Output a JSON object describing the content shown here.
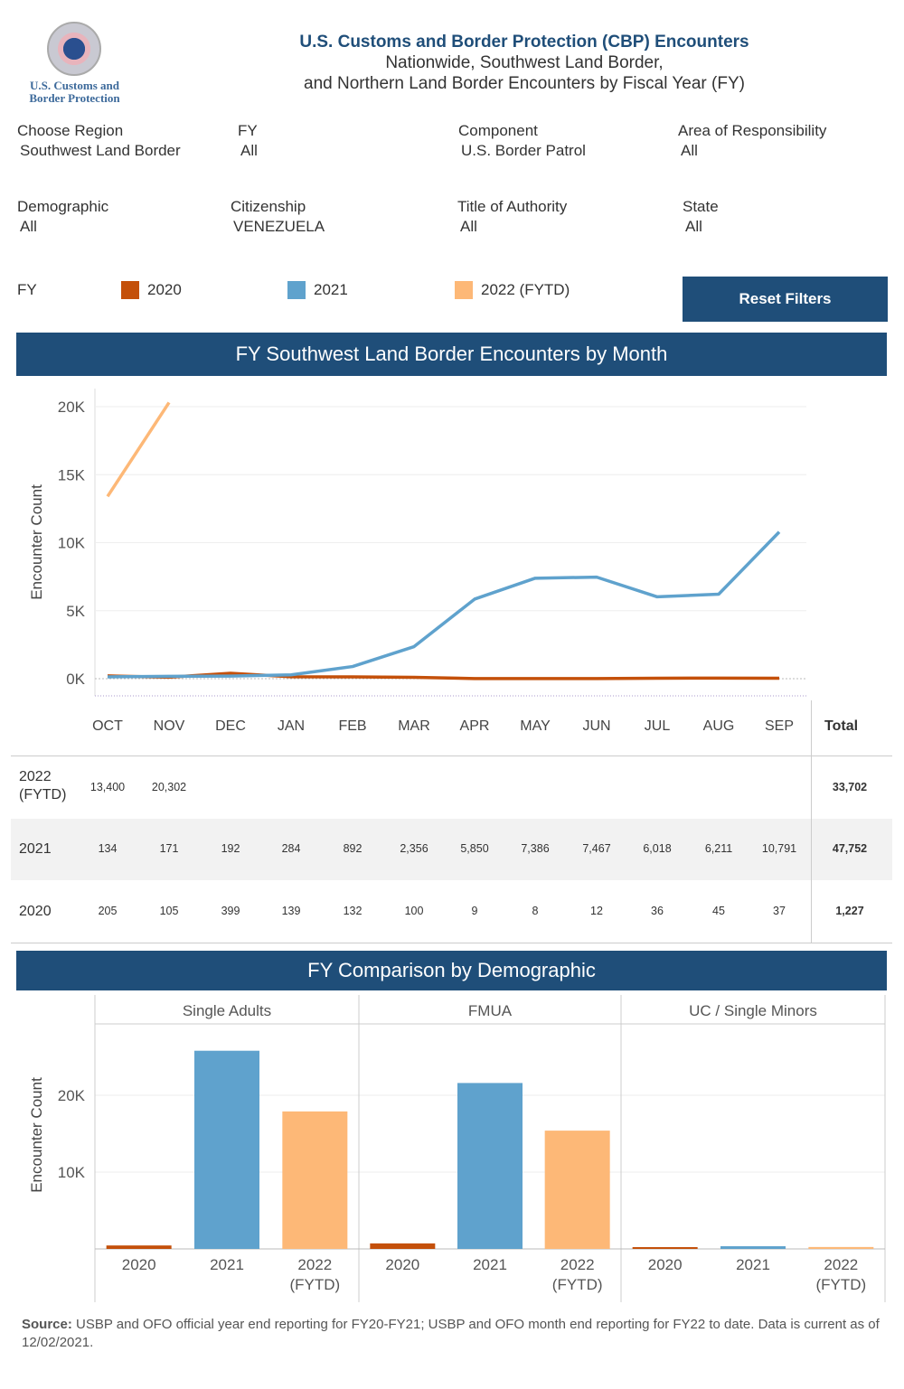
{
  "header": {
    "logo_text": "U.S. Customs and Border Protection",
    "title": "U.S. Customs and Border Protection (CBP) Encounters",
    "subtitle1": "Nationwide, Southwest Land Border,",
    "subtitle2": "and Northern Land Border Encounters by Fiscal Year (FY)"
  },
  "filters": [
    {
      "label": "Choose Region",
      "value": "Southwest Land Border"
    },
    {
      "label": "FY",
      "value": "All"
    },
    {
      "label": "Component",
      "value": "U.S. Border Patrol"
    },
    {
      "label": "Area of Responsibility",
      "value": "All"
    },
    {
      "label": "Demographic",
      "value": "All"
    },
    {
      "label": "Citizenship",
      "value": "VENEZUELA"
    },
    {
      "label": "Title of Authority",
      "value": "All"
    },
    {
      "label": "State",
      "value": "All"
    }
  ],
  "legend": {
    "label": "FY",
    "items": [
      {
        "label": "2020",
        "color": "#c4500a"
      },
      {
        "label": "2021",
        "color": "#5fa2cd"
      },
      {
        "label": "2022 (FYTD)",
        "color": "#fdb877"
      }
    ]
  },
  "reset_label": "Reset Filters",
  "monthly": {
    "banner": "FY Southwest Land Border Encounters by Month",
    "ylabel": "Encounter Count",
    "total_label": "Total"
  },
  "demo": {
    "banner": "FY Comparison by Demographic",
    "ylabel": "Encounter Count"
  },
  "source_bold": "Source:",
  "source_text": " USBP and OFO official year end reporting for FY20-FY21; USBP and OFO month end reporting for FY22 to date. Data is current as of 12/02/2021.",
  "chart_data": [
    {
      "type": "line",
      "ylabel": "Encounter Count",
      "ylim": [
        0,
        21000
      ],
      "yticks": [
        "0K",
        "5K",
        "10K",
        "15K",
        "20K"
      ],
      "grid": true,
      "categories": [
        "OCT",
        "NOV",
        "DEC",
        "JAN",
        "FEB",
        "MAR",
        "APR",
        "MAY",
        "JUN",
        "JUL",
        "AUG",
        "SEP"
      ],
      "series": [
        {
          "name": "2022 (FYTD)",
          "row_label": "2022 (FYTD)",
          "color": "#fdb877",
          "values": [
            13400,
            20302,
            null,
            null,
            null,
            null,
            null,
            null,
            null,
            null,
            null,
            null
          ],
          "display": [
            "13,400",
            "20,302",
            "",
            "",
            "",
            "",
            "",
            "",
            "",
            "",
            "",
            ""
          ],
          "total": "33,702"
        },
        {
          "name": "2021",
          "row_label": "2021",
          "color": "#5fa2cd",
          "values": [
            134,
            171,
            192,
            284,
            892,
            2356,
            5850,
            7386,
            7467,
            6018,
            6211,
            10791
          ],
          "display": [
            "134",
            "171",
            "192",
            "284",
            "892",
            "2,356",
            "5,850",
            "7,386",
            "7,467",
            "6,018",
            "6,211",
            "10,791"
          ],
          "total": "47,752"
        },
        {
          "name": "2020",
          "row_label": "2020",
          "color": "#c4500a",
          "values": [
            205,
            105,
            399,
            139,
            132,
            100,
            9,
            8,
            12,
            36,
            45,
            37
          ],
          "display": [
            "205",
            "105",
            "399",
            "139",
            "132",
            "100",
            "9",
            "8",
            "12",
            "36",
            "45",
            "37"
          ],
          "total": "1,227"
        }
      ]
    },
    {
      "type": "bar",
      "ylabel": "Encounter Count",
      "yticks": [
        "10K",
        "20K"
      ],
      "grid": true,
      "panels": [
        "Single Adults",
        "FMUA",
        "UC / Single Minors"
      ],
      "categories": [
        "2020",
        "2021",
        "2022 (FYTD)"
      ],
      "values": [
        [
          450,
          25800,
          17900
        ],
        [
          720,
          21600,
          15400
        ],
        [
          60,
          350,
          250
        ]
      ],
      "colors": [
        "#c4500a",
        "#5fa2cd",
        "#fdb877"
      ]
    }
  ]
}
